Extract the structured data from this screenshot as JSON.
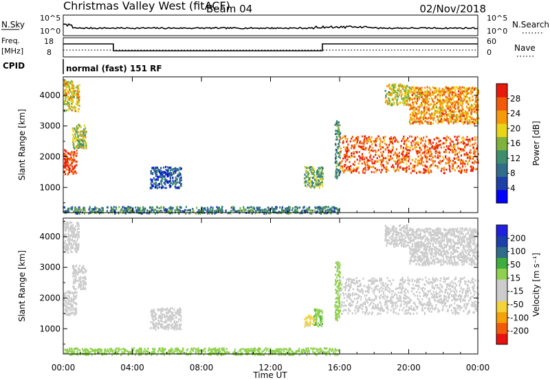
{
  "header": {
    "station": "Christmas Valley West (fitACF)",
    "beam": "Beam 04",
    "date": "02/Nov/2018"
  },
  "status_panels": {
    "nsky_label": "N.Sky",
    "nsky_ticks": [
      "10^5",
      "10^0"
    ],
    "nsearch_label": "N.Search",
    "nsearch_ticks": [
      "10^5",
      "10^0"
    ],
    "freq_label": "Freq.",
    "freq_unit": "[MHz]",
    "freq_ticks": [
      "18",
      "8"
    ],
    "nave_label": "Nave",
    "nave_ticks": [
      "60",
      "0"
    ],
    "cpid_label": "CPID",
    "cpid_text": "normal (fast) 151 RF"
  },
  "chart_data": [
    {
      "type": "heatmap",
      "name": "power-panel",
      "xlabel": "Time UT",
      "ylabel": "Slant Range [km]",
      "xlim": [
        0,
        24
      ],
      "ylim": [
        180,
        4600
      ],
      "x_ticks": [
        "00:00",
        "04:00",
        "08:00",
        "12:00",
        "16:00",
        "20:00",
        "00:00"
      ],
      "y_ticks": [
        1000,
        2000,
        3000,
        4000
      ],
      "colorbar": {
        "label": "Power [dB]",
        "range": [
          0,
          32
        ],
        "ticks": [
          "4",
          "8",
          "12",
          "16",
          "20",
          "24",
          "28"
        ],
        "colors": [
          "#0000ff",
          "#1c3fa8",
          "#2f6d8a",
          "#3e8d6e",
          "#7fb33b",
          "#e8d51a",
          "#f79a0a",
          "#f25a0a",
          "#e81a0a"
        ]
      },
      "regions": [
        {
          "t0": 0.0,
          "t1": 0.75,
          "r0": 1450,
          "r1": 2250,
          "level": 28
        },
        {
          "t0": 0.5,
          "t1": 1.3,
          "r0": 2300,
          "r1": 3100,
          "level": 17
        },
        {
          "t0": 0.0,
          "t1": 0.9,
          "r0": 3500,
          "r1": 4500,
          "level": 20
        },
        {
          "t0": 0.0,
          "t1": 15.9,
          "r0": 180,
          "r1": 400,
          "level": 11
        },
        {
          "t0": 5.0,
          "t1": 6.8,
          "r0": 1000,
          "r1": 1700,
          "level": 7
        },
        {
          "t0": 13.9,
          "t1": 15.0,
          "r0": 1000,
          "r1": 1700,
          "level": 15
        },
        {
          "t0": 15.7,
          "t1": 16.0,
          "r0": 1300,
          "r1": 3200,
          "level": 12
        },
        {
          "t0": 16.0,
          "t1": 24.0,
          "r0": 1500,
          "r1": 2700,
          "level": 27
        },
        {
          "t0": 18.6,
          "t1": 20.0,
          "r0": 3700,
          "r1": 4400,
          "level": 18
        },
        {
          "t0": 20.0,
          "t1": 24.0,
          "r0": 3100,
          "r1": 4300,
          "level": 23
        }
      ]
    },
    {
      "type": "heatmap",
      "name": "velocity-panel",
      "xlabel": "Time UT",
      "ylabel": "Slant Range [km]",
      "xlim": [
        0,
        24
      ],
      "ylim": [
        180,
        4600
      ],
      "x_ticks": [
        "00:00",
        "04:00",
        "08:00",
        "12:00",
        "16:00",
        "20:00",
        "00:00"
      ],
      "y_ticks": [
        1000,
        2000,
        3000,
        4000
      ],
      "colorbar": {
        "label": "Velocity [m s⁻¹]",
        "range": [
          -250,
          250
        ],
        "ticks": [
          "200",
          "100",
          "50",
          "15",
          "-15",
          "-50",
          "-100",
          "-200"
        ],
        "colors": [
          "#e81010",
          "#f25a0a",
          "#f5a20a",
          "#f3d23a",
          "#cccccc",
          "#cccccc",
          "#8fd14f",
          "#3fae3f",
          "#2f6d8a",
          "#1c3fa8",
          "#2020e0"
        ]
      },
      "regions": [
        {
          "t0": 0.0,
          "t1": 0.75,
          "r0": 1450,
          "r1": 2250,
          "level": 0
        },
        {
          "t0": 0.5,
          "t1": 1.3,
          "r0": 2300,
          "r1": 3100,
          "level": 0
        },
        {
          "t0": 0.0,
          "t1": 0.9,
          "r0": 3500,
          "r1": 4500,
          "level": -20
        },
        {
          "t0": 0.0,
          "t1": 15.9,
          "r0": 180,
          "r1": 400,
          "level": 45
        },
        {
          "t0": 5.0,
          "t1": 6.8,
          "r0": 1000,
          "r1": 1700,
          "level": 0
        },
        {
          "t0": 13.9,
          "t1": 14.5,
          "r0": 1100,
          "r1": 1500,
          "level": -80
        },
        {
          "t0": 14.5,
          "t1": 15.0,
          "r0": 1100,
          "r1": 1700,
          "level": 60
        },
        {
          "t0": 15.7,
          "t1": 16.0,
          "r0": 1300,
          "r1": 3200,
          "level": 40
        },
        {
          "t0": 16.0,
          "t1": 24.0,
          "r0": 1500,
          "r1": 2700,
          "level": 0
        },
        {
          "t0": 18.6,
          "t1": 20.0,
          "r0": 3700,
          "r1": 4400,
          "level": 0
        },
        {
          "t0": 20.0,
          "t1": 24.0,
          "r0": 3100,
          "r1": 4300,
          "level": -10
        }
      ]
    }
  ]
}
